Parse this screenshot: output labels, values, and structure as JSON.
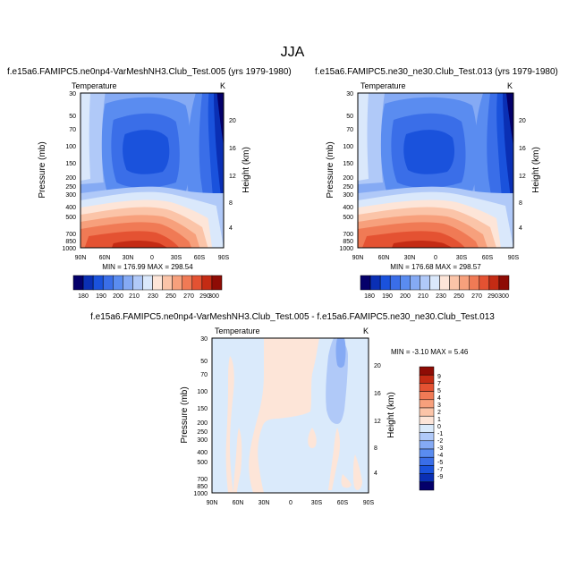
{
  "page_title": "JJA",
  "chart_data": [
    {
      "type": "heatmap",
      "title": "f.e15a6.FAMIPC5.ne0np4-VarMeshNH3.Club_Test.005 (yrs 1979-1980)",
      "variable": "Temperature",
      "units": "K",
      "ylabel": "Pressure (mb)",
      "ylabel_right": "Height (km)",
      "x_ticks": [
        "90N",
        "60N",
        "30N",
        "0",
        "30S",
        "60S",
        "90S"
      ],
      "y_ticks": [
        "30",
        "50",
        "70",
        "100",
        "150",
        "200",
        "250",
        "300",
        "400",
        "500",
        "700",
        "850",
        "1000"
      ],
      "height_ticks": [
        "20",
        "16",
        "12",
        "8",
        "4"
      ],
      "stats": "MIN = 176.99  MAX = 298.54",
      "min": 176.99,
      "max": 298.54,
      "colorbar_labels": [
        "180",
        "190",
        "200",
        "210",
        "230",
        "250",
        "270",
        "290",
        "300"
      ]
    },
    {
      "type": "heatmap",
      "title": "f.e15a6.FAMIPC5.ne30_ne30.Club_Test.013 (yrs 1979-1980)",
      "variable": "Temperature",
      "units": "K",
      "ylabel": "Pressure (mb)",
      "ylabel_right": "Height (km)",
      "x_ticks": [
        "90N",
        "60N",
        "30N",
        "0",
        "30S",
        "60S",
        "90S"
      ],
      "y_ticks": [
        "30",
        "50",
        "70",
        "100",
        "150",
        "200",
        "250",
        "300",
        "400",
        "500",
        "700",
        "850",
        "1000"
      ],
      "height_ticks": [
        "20",
        "16",
        "12",
        "8",
        "4"
      ],
      "stats": "MIN = 176.68  MAX = 298.57",
      "min": 176.68,
      "max": 298.57,
      "colorbar_labels": [
        "180",
        "190",
        "200",
        "210",
        "230",
        "250",
        "270",
        "290",
        "300"
      ]
    },
    {
      "type": "heatmap",
      "title": "f.e15a6.FAMIPC5.ne0np4-VarMeshNH3.Club_Test.005 - f.e15a6.FAMIPC5.ne30_ne30.Club_Test.013",
      "variable": "Temperature",
      "units": "K",
      "ylabel": "Pressure (mb)",
      "ylabel_right": "Height (km)",
      "x_ticks": [
        "90N",
        "60N",
        "30N",
        "0",
        "30S",
        "60S",
        "90S"
      ],
      "y_ticks": [
        "30",
        "50",
        "70",
        "100",
        "150",
        "200",
        "250",
        "300",
        "400",
        "500",
        "700",
        "850",
        "1000"
      ],
      "height_ticks": [
        "20",
        "16",
        "12",
        "8",
        "4"
      ],
      "stats": "MIN =  -3.10   MAX =   5.46",
      "min": -3.1,
      "max": 5.46,
      "colorbar_labels": [
        "9",
        "7",
        "5",
        "4",
        "3",
        "2",
        "1",
        "0",
        "-1",
        "-2",
        "-3",
        "-4",
        "-5",
        "-7",
        "-9"
      ]
    }
  ],
  "colors": {
    "temp_levels": [
      "#04006a",
      "#0a2fb4",
      "#1a52dc",
      "#3a6ee8",
      "#5a8cf0",
      "#85aaf4",
      "#b0c9f8",
      "#dae8fb",
      "#fde5d8",
      "#fbc4a8",
      "#f7a07c",
      "#f07a55",
      "#e45232",
      "#c42b14",
      "#8e0c05"
    ],
    "diff_levels": [
      "#8e0c05",
      "#c42b14",
      "#e45232",
      "#f07a55",
      "#f7a07c",
      "#fbc4a8",
      "#fde5d8",
      "#daeafb",
      "#b0c9f8",
      "#85aaf4",
      "#5a8cf0",
      "#3a6ee8",
      "#1a52dc",
      "#0a2fb4",
      "#04006a"
    ]
  }
}
